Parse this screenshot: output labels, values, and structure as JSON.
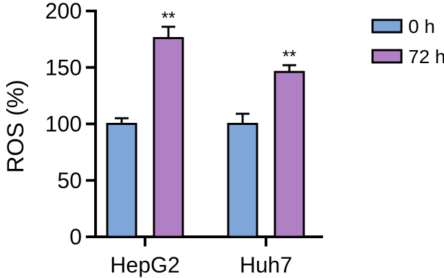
{
  "chart_data": {
    "type": "bar",
    "title": "",
    "xlabel": "",
    "ylabel": "ROS (%)",
    "ylim": [
      0,
      200
    ],
    "yticks": [
      0,
      50,
      100,
      150,
      200
    ],
    "categories": [
      "HepG2",
      "Huh7"
    ],
    "series": [
      {
        "name": "0 h",
        "color": "#7ea6d8",
        "values": [
          100,
          100
        ],
        "errors": [
          5,
          9
        ]
      },
      {
        "name": "72 h",
        "color": "#b07fc4",
        "values": [
          176,
          146
        ],
        "errors": [
          10,
          6
        ]
      }
    ],
    "annotations": [
      {
        "category": "HepG2",
        "series": "72 h",
        "text": "**"
      },
      {
        "category": "Huh7",
        "series": "72 h",
        "text": "**"
      }
    ],
    "legend_position": "top-right",
    "grid": false
  }
}
